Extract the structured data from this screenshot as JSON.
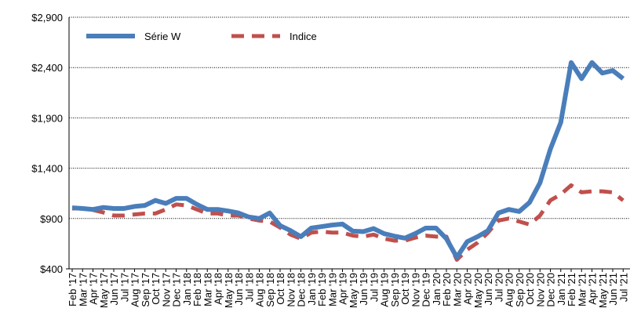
{
  "chart_data": {
    "type": "line",
    "categories": [
      "Feb '17",
      "Mar '17",
      "Apr '17",
      "May '17",
      "Jun '17",
      "Jul '17",
      "Aug '17",
      "Sep '17",
      "Oct '17",
      "Nov '17",
      "Dec '17",
      "Jan '18",
      "Feb '18",
      "Mar '18",
      "Apr '18",
      "May '18",
      "Jun '18",
      "Jul '18",
      "Aug '18",
      "Sep '18",
      "Oct '18",
      "Nov '18",
      "Dec '18",
      "Jan '19",
      "Feb '19",
      "Mar '19",
      "Apr '19",
      "May '19",
      "Jun '19",
      "Jul '19",
      "Aug '19",
      "Sep '19",
      "Oct '19",
      "Nov '19",
      "Dec '19",
      "Jan '20",
      "Feb '20",
      "Mar '20",
      "Apr '20",
      "May '20",
      "Jun '20",
      "Jul '20",
      "Aug '20",
      "Sep '20",
      "Oct '20",
      "Nov '20",
      "Dec '20",
      "Jan '21",
      "Feb '21",
      "Mar '21",
      "Apr '21",
      "May '21",
      "Jun '21",
      "Jul '21"
    ],
    "series": [
      {
        "name": "Série W",
        "color": "#4a7ebb",
        "dashed": false,
        "values": [
          1007,
          1000,
          990,
          1010,
          1000,
          1000,
          1020,
          1030,
          1080,
          1050,
          1100,
          1100,
          1040,
          990,
          990,
          975,
          955,
          915,
          900,
          955,
          830,
          780,
          720,
          805,
          820,
          835,
          845,
          775,
          770,
          800,
          750,
          725,
          705,
          750,
          805,
          805,
          700,
          515,
          670,
          720,
          780,
          955,
          990,
          970,
          1060,
          1255,
          1590,
          1855,
          2450,
          2290,
          2450,
          2345,
          2370,
          2290
        ]
      },
      {
        "name": "Indice",
        "color": "#c0504d",
        "dashed": true,
        "values": [
          1000,
          1000,
          985,
          960,
          930,
          930,
          940,
          950,
          950,
          990,
          1040,
          1030,
          990,
          950,
          950,
          930,
          930,
          900,
          880,
          870,
          810,
          740,
          700,
          760,
          770,
          760,
          760,
          730,
          720,
          740,
          700,
          680,
          680,
          710,
          730,
          720,
          720,
          490,
          590,
          660,
          760,
          880,
          900,
          870,
          840,
          930,
          1080,
          1140,
          1230,
          1160,
          1170,
          1170,
          1160,
          1080
        ]
      }
    ],
    "ylim": [
      400,
      2900
    ],
    "yticks": [
      {
        "value": 400,
        "label": "$400"
      },
      {
        "value": 900,
        "label": "$900"
      },
      {
        "value": 1400,
        "label": "$1,400"
      },
      {
        "value": 1900,
        "label": "$1,900"
      },
      {
        "value": 2400,
        "label": "$2,400"
      },
      {
        "value": 2900,
        "label": "$2,900"
      }
    ],
    "grid": true,
    "legend": "top-left"
  }
}
